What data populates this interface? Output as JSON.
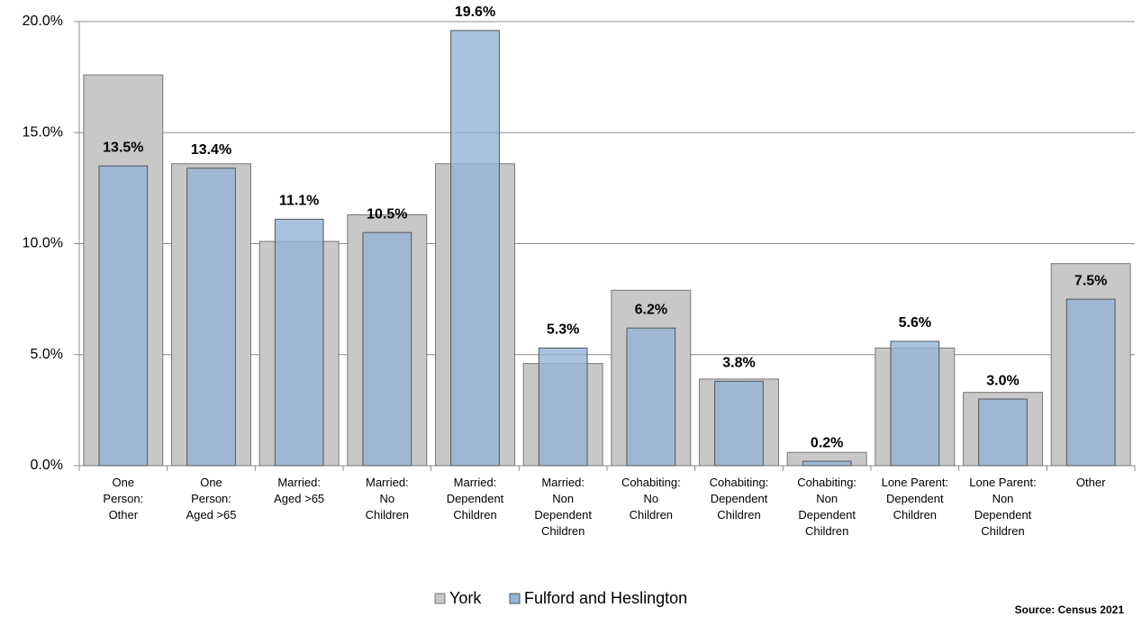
{
  "chart_data": {
    "type": "bar",
    "categories": [
      "One\nPerson:\nOther",
      "One\nPerson:\nAged >65",
      "Married:\nAged >65",
      "Married:\nNo\nChildren",
      "Married:\nDependent\nChildren",
      "Married:\nNon\nDependent\nChildren",
      "Cohabiting:\nNo\nChildren",
      "Cohabiting:\nDependent\nChildren",
      "Cohabiting:\nNon\nDependent\nChildren",
      "Lone Parent:\nDependent\nChildren",
      "Lone Parent:\nNon\nDependent\nChildren",
      "Other"
    ],
    "series": [
      {
        "name": "York",
        "color": "#c8c8c8",
        "values": [
          17.6,
          13.6,
          10.1,
          11.3,
          13.6,
          4.6,
          7.9,
          3.9,
          0.6,
          5.3,
          3.3,
          9.1
        ]
      },
      {
        "name": "Fulford and Heslington",
        "color": "#95b3d7",
        "values": [
          13.5,
          13.4,
          11.1,
          10.5,
          19.6,
          5.3,
          6.2,
          3.8,
          0.2,
          5.6,
          3.0,
          7.5
        ],
        "value_labels": [
          "13.5%",
          "13.4%",
          "11.1%",
          "10.5%",
          "19.6%",
          "5.3%",
          "6.2%",
          "3.8%",
          "0.2%",
          "5.6%",
          "3.0%",
          "7.5%"
        ]
      }
    ],
    "ylim": [
      0,
      20
    ],
    "yticks": [
      {
        "value": 0,
        "label": "0.0%"
      },
      {
        "value": 5,
        "label": "5.0%"
      },
      {
        "value": 10,
        "label": "10.0%"
      },
      {
        "value": 15,
        "label": "15.0%"
      },
      {
        "value": 20,
        "label": "20.0%"
      }
    ],
    "grid": true,
    "legend": "bottom",
    "source": "Source: Census 2021"
  }
}
